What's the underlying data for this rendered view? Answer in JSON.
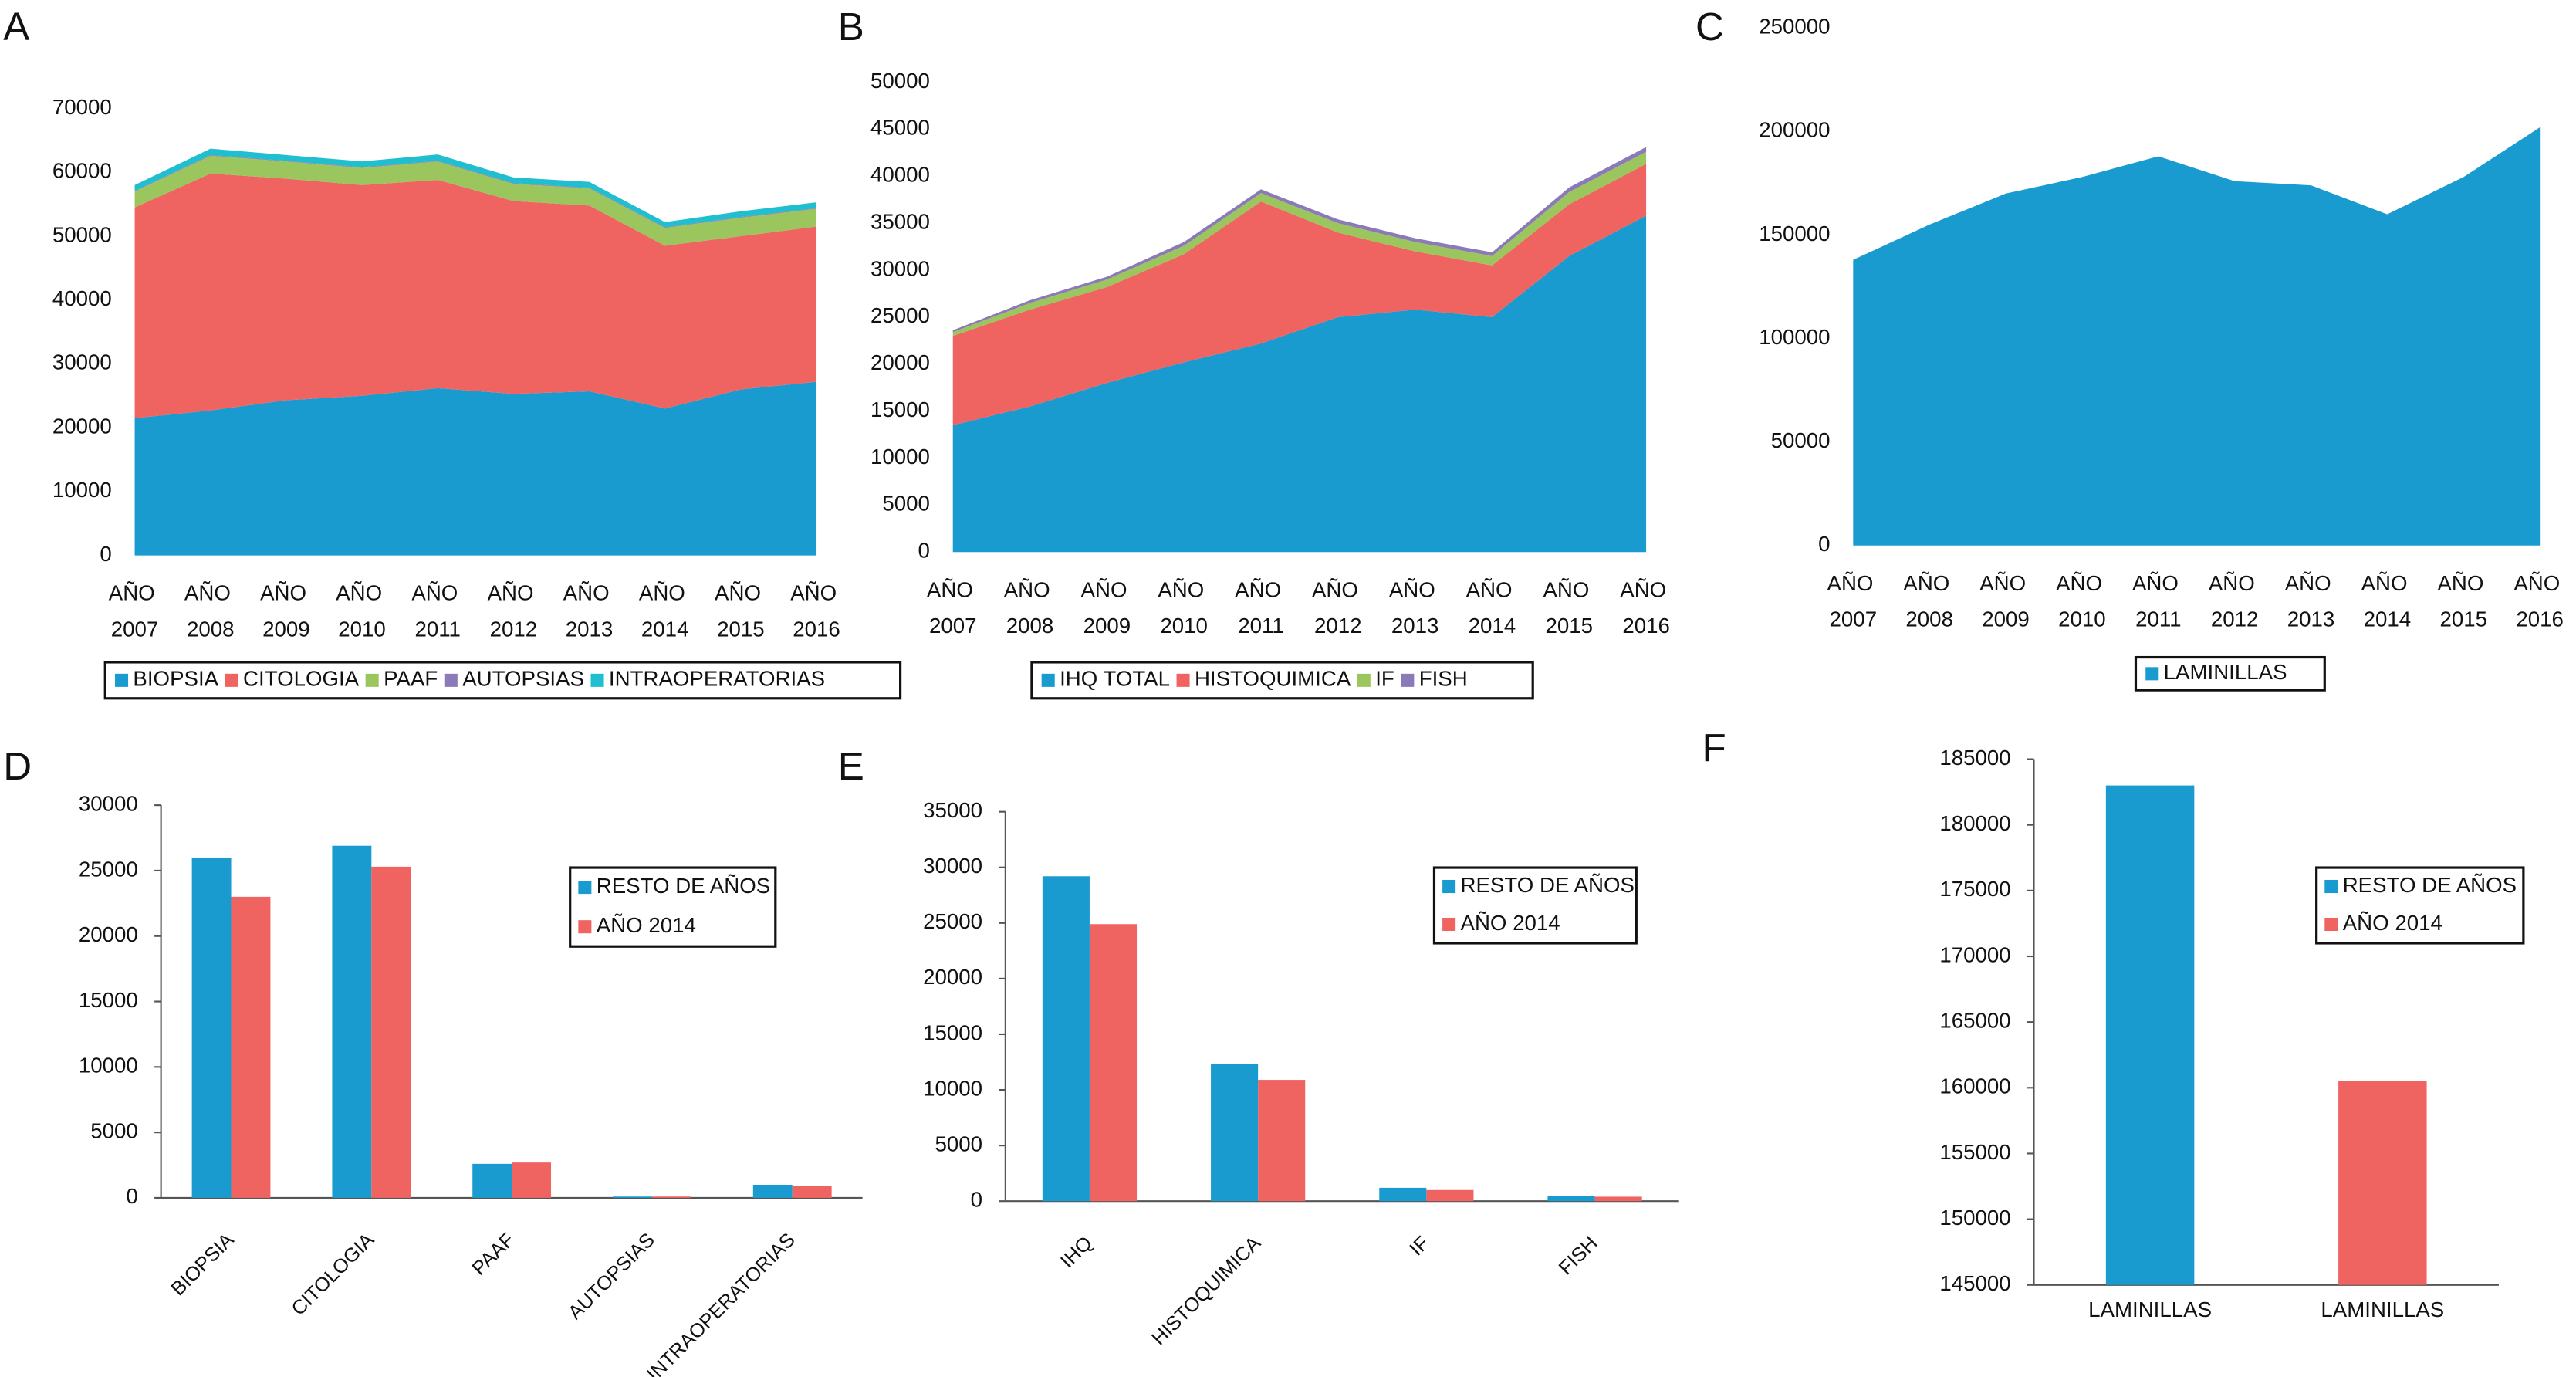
{
  "chart_data": [
    {
      "type": "area",
      "panel": "A",
      "categories": [
        "AÑO 2007",
        "AÑO 2008",
        "AÑO 2009",
        "AÑO 2010",
        "AÑO 2011",
        "AÑO 2012",
        "AÑO 2013",
        "AÑO 2014",
        "AÑO 2015",
        "AÑO 2016"
      ],
      "series": [
        {
          "name": "BIOPSIA",
          "color": "#1a9bd0",
          "values": [
            21500,
            22700,
            24300,
            25000,
            26200,
            25300,
            25700,
            23000,
            26000,
            27200
          ]
        },
        {
          "name": "CITOLOGIA",
          "color": "#ef6461",
          "values": [
            33000,
            37100,
            34700,
            33000,
            32600,
            30200,
            29100,
            25500,
            24000,
            24300
          ]
        },
        {
          "name": "PAAF",
          "color": "#9bc55d",
          "values": [
            2500,
            2800,
            2700,
            2700,
            2900,
            2700,
            2700,
            2800,
            2900,
            2800
          ]
        },
        {
          "name": "AUTOPSIAS",
          "color": "#8c7ab8",
          "values": [
            100,
            100,
            100,
            100,
            100,
            100,
            100,
            100,
            100,
            100
          ]
        },
        {
          "name": "INTRAOPERATORIAS",
          "color": "#1fbfcf",
          "values": [
            900,
            1000,
            900,
            900,
            1000,
            900,
            900,
            800,
            900,
            900
          ]
        }
      ],
      "ylim": [
        0,
        70000
      ],
      "yticks": [
        0,
        10000,
        20000,
        30000,
        40000,
        50000,
        60000,
        70000
      ],
      "legend": "bottom"
    },
    {
      "type": "area",
      "panel": "B",
      "categories": [
        "AÑO 2007",
        "AÑO 2008",
        "AÑO 2009",
        "AÑO 2010",
        "AÑO 2011",
        "AÑO 2012",
        "AÑO 2013",
        "AÑO 2014",
        "AÑO 2015",
        "AÑO 2016"
      ],
      "series": [
        {
          "name": "IHQ TOTAL",
          "color": "#1a9bd0",
          "values": [
            13500,
            15500,
            18000,
            20200,
            22200,
            25000,
            25800,
            25000,
            31500,
            35800
          ]
        },
        {
          "name": "HISTOQUIMICA",
          "color": "#ef6461",
          "values": [
            9500,
            10300,
            10200,
            11500,
            15100,
            9000,
            6200,
            5500,
            5500,
            5500
          ]
        },
        {
          "name": "IF",
          "color": "#9bc55d",
          "values": [
            400,
            700,
            800,
            900,
            900,
            1000,
            1000,
            1000,
            1300,
            1300
          ]
        },
        {
          "name": "FISH",
          "color": "#8c7ab8",
          "values": [
            200,
            300,
            300,
            400,
            400,
            400,
            400,
            400,
            500,
            500
          ]
        }
      ],
      "ylim": [
        0,
        50000
      ],
      "yticks": [
        0,
        5000,
        10000,
        15000,
        20000,
        25000,
        30000,
        35000,
        40000,
        45000,
        50000
      ],
      "legend": "bottom"
    },
    {
      "type": "area",
      "panel": "C",
      "categories": [
        "AÑO 2007",
        "AÑO 2008",
        "AÑO 2009",
        "AÑO 2010",
        "AÑO 2011",
        "AÑO 2012",
        "AÑO 2013",
        "AÑO 2014",
        "AÑO 2015",
        "AÑO 2016"
      ],
      "series": [
        {
          "name": "LAMINILLAS",
          "color": "#1a9bd0",
          "values": [
            138000,
            155000,
            170000,
            178000,
            188000,
            176000,
            174000,
            160000,
            178000,
            202000
          ]
        }
      ],
      "ylim": [
        0,
        250000
      ],
      "yticks": [
        0,
        50000,
        100000,
        150000,
        200000,
        250000
      ],
      "legend": "bottom"
    },
    {
      "type": "bar",
      "panel": "D",
      "categories": [
        "BIOPSIA",
        "CITOLOGIA",
        "PAAF",
        "AUTOPSIAS",
        "INTRAOPERATORIAS"
      ],
      "series": [
        {
          "name": "RESTO DE AÑOS",
          "color": "#1a9bd0",
          "values": [
            26000,
            26900,
            2600,
            100,
            1000
          ]
        },
        {
          "name": "AÑO 2014",
          "color": "#ef6461",
          "values": [
            23000,
            25300,
            2700,
            100,
            900
          ]
        }
      ],
      "ylim": [
        0,
        30000
      ],
      "yticks": [
        0,
        5000,
        10000,
        15000,
        20000,
        25000,
        30000
      ],
      "legend": "upper right"
    },
    {
      "type": "bar",
      "panel": "E",
      "categories": [
        "IHQ",
        "HISTOQUIMICA",
        "IF",
        "FISH"
      ],
      "series": [
        {
          "name": "RESTO DE AÑOS",
          "color": "#1a9bd0",
          "values": [
            29200,
            12300,
            1200,
            500
          ]
        },
        {
          "name": "AÑO 2014",
          "color": "#ef6461",
          "values": [
            24900,
            10900,
            1000,
            400
          ]
        }
      ],
      "ylim": [
        0,
        35000
      ],
      "yticks": [
        0,
        5000,
        10000,
        15000,
        20000,
        25000,
        30000,
        35000
      ],
      "legend": "upper right"
    },
    {
      "type": "bar",
      "panel": "F",
      "categories": [
        "LAMINILLAS",
        "LAMINILLAS"
      ],
      "series": [
        {
          "name": "RESTO DE AÑOS",
          "color": "#1a9bd0",
          "values": [
            183000,
            null
          ]
        },
        {
          "name": "AÑO 2014",
          "color": "#ef6461",
          "values": [
            null,
            160500
          ]
        }
      ],
      "ylim": [
        145000,
        185000
      ],
      "yticks": [
        145000,
        150000,
        155000,
        160000,
        165000,
        170000,
        175000,
        180000,
        185000
      ],
      "legend": "upper right"
    }
  ]
}
